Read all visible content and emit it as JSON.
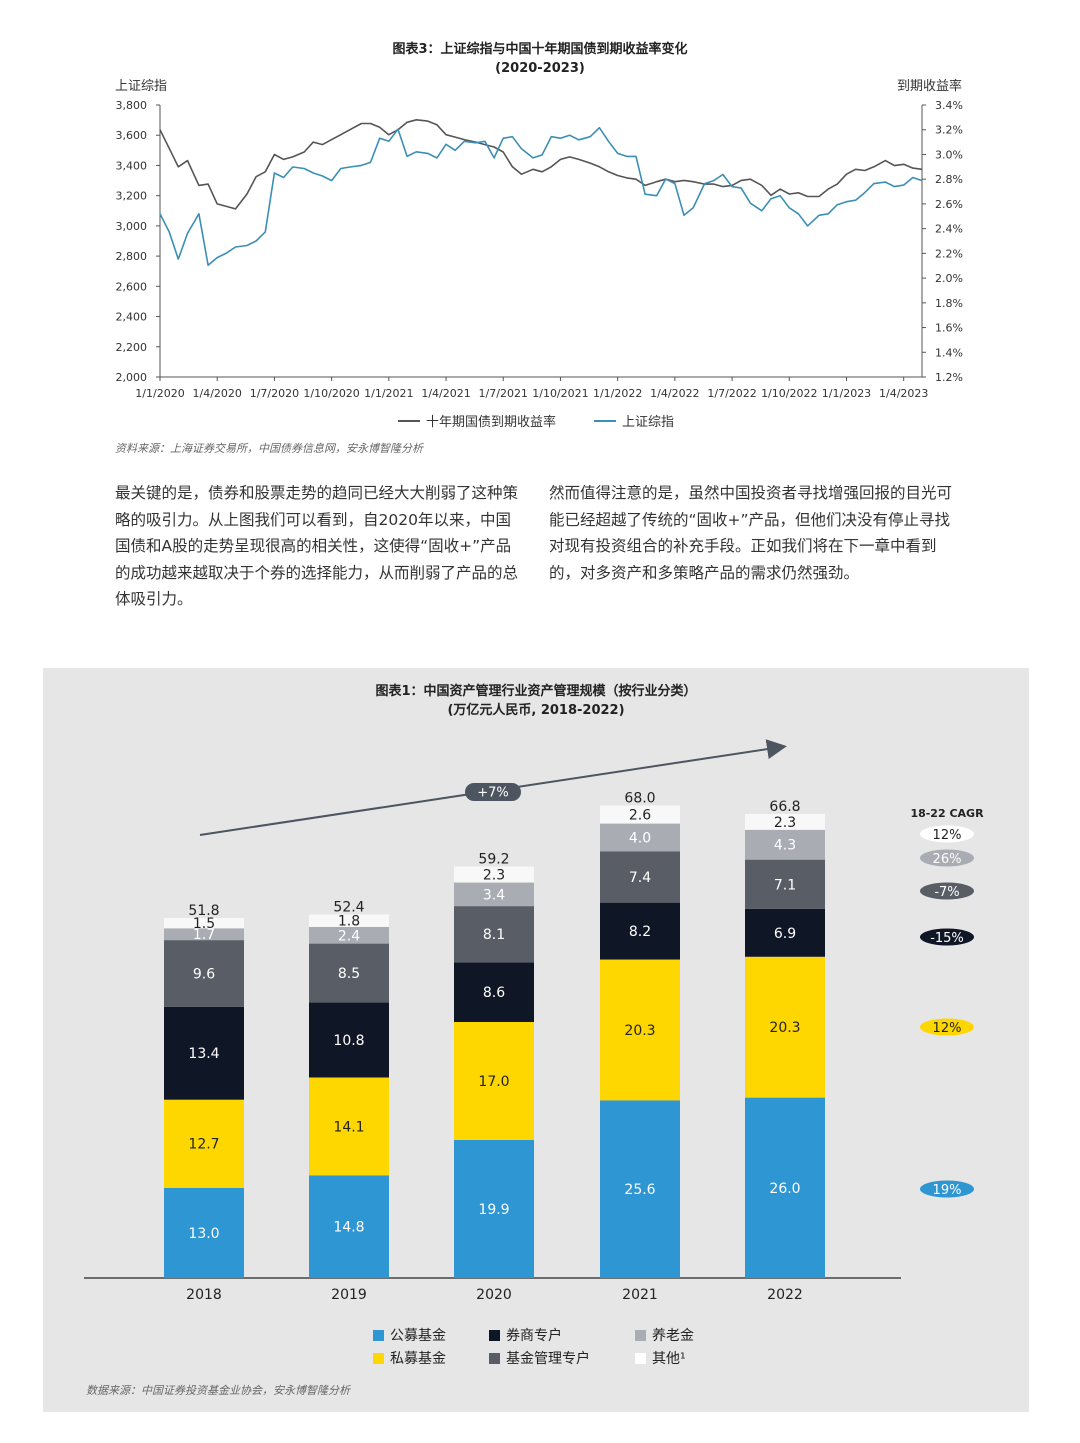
{
  "figure3": {
    "title_line1": "图表3：上证综指与中国十年期国债到期收益率变化",
    "title_line2": "(2020-2023)",
    "left_axis_label": "上证综指",
    "right_axis_label": "到期收益率",
    "source": "资料来源：上海证券交易所，中国债券信息网，安永博智隆分析"
  },
  "paragraphs": {
    "left": "最关键的是，债券和股票走势的趋同已经大大削弱了这种策略的吸引力。从上图我们可以看到，自2020年以来，中国国债和A股的走势呈现很高的相关性，这使得“固收+”产品的成功越来越取决于个券的选择能力，从而削弱了产品的总体吸引力。",
    "right": "然而值得注意的是，虽然中国投资者寻找增强回报的目光可能已经超越了传统的“固收+”产品，但他们决没有停止寻找对现有投资组合的补充手段。正如我们将在下一章中看到的，对多资产和多策略产品的需求仍然强劲。"
  },
  "figure1": {
    "title_line1": "图表1：中国资产管理行业资产管理规模（按行业分类）",
    "title_line2": "(万亿元人民币, 2018-2022)",
    "trend_label": "+7%",
    "cagr_header": "18-22 CAGR",
    "source": "数据来源：中国证券投资基金业协会，安永博智隆分析"
  },
  "chart_data": [
    {
      "type": "line",
      "title": "图表3：上证综指与中国十年期国债到期收益率变化 (2020-2023)",
      "ylabel": "上证综指",
      "y2label": "到期收益率",
      "ylim": [
        2000,
        3800
      ],
      "y2lim": [
        1.2,
        3.4
      ],
      "y_ticks": [
        "2,000",
        "2,200",
        "2,400",
        "2,600",
        "2,800",
        "3,000",
        "3,200",
        "3,400",
        "3,600",
        "3,800"
      ],
      "y2_ticks": [
        "1.2%",
        "1.4%",
        "1.6%",
        "1.8%",
        "2.0%",
        "2.2%",
        "2.4%",
        "2.6%",
        "2.8%",
        "3.0%",
        "3.2%",
        "3.4%"
      ],
      "x_ticks": [
        "1/1/2020",
        "1/4/2020",
        "1/7/2020",
        "1/10/2020",
        "1/1/2021",
        "1/4/2021",
        "1/7/2021",
        "1/10/2021",
        "1/1/2022",
        "1/4/2022",
        "1/7/2022",
        "1/10/2022",
        "1/1/2023",
        "1/4/2023"
      ],
      "x_range": [
        2020.0,
        2023.33
      ],
      "grid": false,
      "legend": "bottom",
      "series": [
        {
          "name": "十年期国债到期收益率",
          "axis": "right",
          "color": "#555555",
          "x": [
            2020.0,
            2020.04,
            2020.08,
            2020.12,
            2020.17,
            2020.21,
            2020.25,
            2020.29,
            2020.33,
            2020.38,
            2020.42,
            2020.46,
            2020.5,
            2020.54,
            2020.58,
            2020.63,
            2020.67,
            2020.71,
            2020.75,
            2020.79,
            2020.83,
            2020.88,
            2020.92,
            2020.96,
            2021.0,
            2021.04,
            2021.08,
            2021.12,
            2021.17,
            2021.21,
            2021.25,
            2021.29,
            2021.33,
            2021.38,
            2021.42,
            2021.46,
            2021.5,
            2021.54,
            2021.58,
            2021.63,
            2021.67,
            2021.71,
            2021.75,
            2021.79,
            2021.83,
            2021.88,
            2021.92,
            2021.96,
            2022.0,
            2022.04,
            2022.08,
            2022.12,
            2022.17,
            2022.21,
            2022.25,
            2022.29,
            2022.33,
            2022.38,
            2022.42,
            2022.46,
            2022.5,
            2022.54,
            2022.58,
            2022.63,
            2022.67,
            2022.71,
            2022.75,
            2022.79,
            2022.83,
            2022.88,
            2022.92,
            2022.96,
            2023.0,
            2023.04,
            2023.08,
            2023.12,
            2023.17,
            2023.21,
            2023.25,
            2023.29,
            2023.33
          ],
          "y": [
            3.2,
            3.05,
            2.9,
            2.95,
            2.75,
            2.76,
            2.6,
            2.58,
            2.56,
            2.68,
            2.82,
            2.86,
            3.0,
            2.96,
            2.98,
            3.02,
            3.1,
            3.08,
            3.12,
            3.16,
            3.2,
            3.25,
            3.25,
            3.22,
            3.16,
            3.2,
            3.26,
            3.28,
            3.27,
            3.24,
            3.16,
            3.14,
            3.12,
            3.1,
            3.08,
            3.06,
            3.02,
            2.9,
            2.84,
            2.88,
            2.86,
            2.9,
            2.96,
            2.98,
            2.96,
            2.93,
            2.9,
            2.86,
            2.83,
            2.81,
            2.8,
            2.75,
            2.78,
            2.8,
            2.78,
            2.79,
            2.78,
            2.76,
            2.76,
            2.74,
            2.75,
            2.79,
            2.8,
            2.75,
            2.67,
            2.72,
            2.68,
            2.69,
            2.66,
            2.66,
            2.72,
            2.76,
            2.84,
            2.88,
            2.87,
            2.9,
            2.95,
            2.91,
            2.92,
            2.89,
            2.88
          ]
        },
        {
          "name": "上证综指",
          "axis": "left",
          "color": "#3b8fb5",
          "x": [
            2020.0,
            2020.04,
            2020.08,
            2020.12,
            2020.17,
            2020.21,
            2020.25,
            2020.29,
            2020.33,
            2020.38,
            2020.42,
            2020.46,
            2020.5,
            2020.54,
            2020.58,
            2020.63,
            2020.67,
            2020.71,
            2020.75,
            2020.79,
            2020.83,
            2020.88,
            2020.92,
            2020.96,
            2021.0,
            2021.04,
            2021.08,
            2021.12,
            2021.17,
            2021.21,
            2021.25,
            2021.29,
            2021.33,
            2021.38,
            2021.42,
            2021.46,
            2021.5,
            2021.54,
            2021.58,
            2021.63,
            2021.67,
            2021.71,
            2021.75,
            2021.79,
            2021.83,
            2021.88,
            2021.92,
            2021.96,
            2022.0,
            2022.04,
            2022.08,
            2022.12,
            2022.17,
            2022.21,
            2022.25,
            2022.29,
            2022.33,
            2022.38,
            2022.42,
            2022.46,
            2022.5,
            2022.54,
            2022.58,
            2022.63,
            2022.67,
            2022.71,
            2022.75,
            2022.79,
            2022.83,
            2022.88,
            2022.92,
            2022.96,
            2023.0,
            2023.04,
            2023.08,
            2023.12,
            2023.17,
            2023.21,
            2023.25,
            2023.29,
            2023.33
          ],
          "y": [
            3080,
            2960,
            2780,
            2950,
            3080,
            2740,
            2790,
            2820,
            2860,
            2870,
            2900,
            2960,
            3350,
            3320,
            3390,
            3380,
            3350,
            3330,
            3300,
            3380,
            3390,
            3400,
            3420,
            3580,
            3560,
            3640,
            3460,
            3490,
            3480,
            3450,
            3540,
            3500,
            3560,
            3550,
            3560,
            3450,
            3580,
            3590,
            3510,
            3450,
            3470,
            3590,
            3580,
            3600,
            3570,
            3590,
            3650,
            3560,
            3480,
            3460,
            3460,
            3210,
            3200,
            3310,
            3280,
            3070,
            3120,
            3280,
            3300,
            3340,
            3260,
            3250,
            3150,
            3100,
            3180,
            3200,
            3120,
            3080,
            3000,
            3070,
            3080,
            3140,
            3160,
            3170,
            3220,
            3280,
            3290,
            3260,
            3270,
            3320,
            3300
          ]
        }
      ]
    },
    {
      "type": "bar",
      "stacked": true,
      "title": "图表1：中国资产管理行业资产管理规模（按行业分类）(万亿元人民币, 2018-2022)",
      "categories": [
        "2018",
        "2019",
        "2020",
        "2021",
        "2022"
      ],
      "totals": [
        "51.8",
        "52.4",
        "59.2",
        "68.0",
        "66.8"
      ],
      "legend": "bottom",
      "series": [
        {
          "name": "公募基金",
          "color": "#2d96d3",
          "text_color": "#ffffff",
          "values": [
            13.0,
            14.8,
            19.9,
            25.6,
            26.0
          ],
          "labels": [
            "13.0",
            "14.8",
            "19.9",
            "25.6",
            "26.0"
          ],
          "cagr": "19%"
        },
        {
          "name": "私募基金",
          "color": "#ffd700",
          "text_color": "#222222",
          "values": [
            12.7,
            14.1,
            17.0,
            20.3,
            20.3
          ],
          "labels": [
            "12.7",
            "14.1",
            "17.0",
            "20.3",
            "20.3"
          ],
          "cagr": "12%"
        },
        {
          "name": "券商专户",
          "color": "#0f1626",
          "text_color": "#ffffff",
          "values": [
            13.4,
            10.8,
            8.6,
            8.2,
            6.9
          ],
          "labels": [
            "13.4",
            "10.8",
            "8.6",
            "8.2",
            "6.9"
          ],
          "cagr": "-15%"
        },
        {
          "name": "基金管理专户",
          "color": "#585d66",
          "text_color": "#ffffff",
          "values": [
            9.6,
            8.5,
            8.1,
            7.4,
            7.1
          ],
          "labels": [
            "9.6",
            "8.5",
            "8.1",
            "7.4",
            "7.1"
          ],
          "cagr": "-7%"
        },
        {
          "name": "养老金",
          "color": "#a9adb3",
          "text_color": "#ffffff",
          "values": [
            1.7,
            2.4,
            3.4,
            4.0,
            4.3
          ],
          "labels": [
            "1.7",
            "2.4",
            "3.4",
            "4.0",
            "4.3"
          ],
          "cagr": "26%"
        },
        {
          "name": "其他¹",
          "color": "#f8f8f8",
          "text_color": "#222222",
          "values": [
            1.5,
            1.8,
            2.3,
            2.6,
            2.3
          ],
          "labels": [
            "1.5",
            "1.8",
            "2.3",
            "2.6",
            "2.3"
          ],
          "cagr": "12%"
        }
      ]
    }
  ]
}
